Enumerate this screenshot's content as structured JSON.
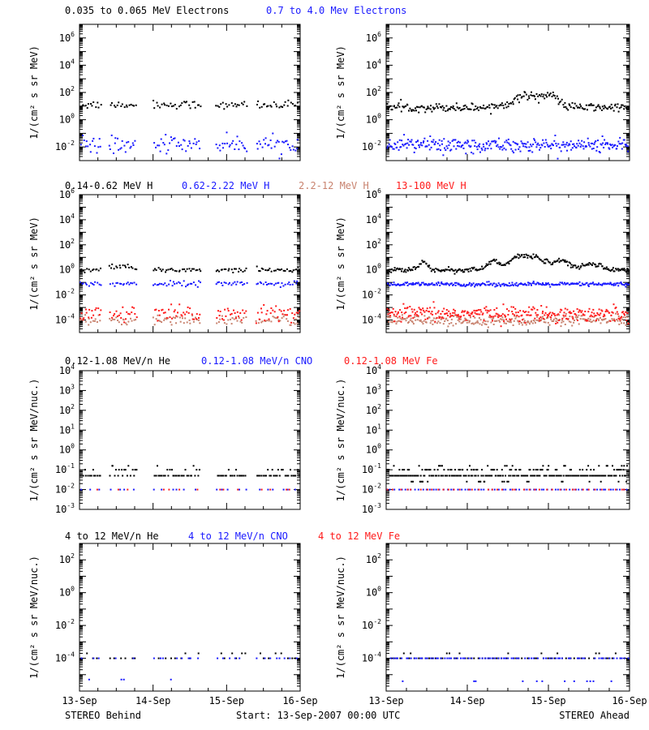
{
  "footer": {
    "left": "STEREO Behind",
    "center": "Start: 13-Sep-2007 00:00 UTC",
    "right": "STEREO Ahead"
  },
  "colors": {
    "black": "#000000",
    "blue": "#1a1aff",
    "salmon": "#c8826e",
    "red": "#ff1a1a"
  },
  "chart_data": [
    {
      "type": "scatter",
      "panel": "electrons-behind",
      "titles": [
        {
          "text": "0.035 to 0.065 MeV Electrons",
          "color": "#000000"
        },
        {
          "text": "0.7 to 4.0 Mev Electrons",
          "color": "#1a1aff"
        }
      ],
      "ylabel": "1/(cm² s sr MeV)",
      "ylog": true,
      "ylim_exp": [
        -3,
        7
      ],
      "ytick_exp": [
        -2,
        0,
        2,
        4,
        6
      ],
      "xlim_days": [
        0,
        3
      ],
      "xtick_labels": [],
      "data_gaps_days": [
        [
          0.3,
          0.4
        ],
        [
          0.78,
          1.0
        ],
        [
          1.65,
          1.85
        ],
        [
          2.28,
          2.4
        ]
      ],
      "series": [
        {
          "name": "0.035 to 0.065 MeV Electrons",
          "color": "#000000",
          "base_log": 1.1,
          "spread_log": 0.15,
          "density": 130
        },
        {
          "name": "0.7 to 4.0 Mev Electrons",
          "color": "#1a1aff",
          "base_log": -1.8,
          "spread_log": 0.3,
          "density": 160
        }
      ]
    },
    {
      "type": "scatter",
      "panel": "electrons-ahead",
      "titles": [],
      "ylabel": "1/(cm² s sr MeV)",
      "ylog": true,
      "ylim_exp": [
        -3,
        7
      ],
      "ytick_exp": [
        -2,
        0,
        2,
        4,
        6
      ],
      "xlim_days": [
        0,
        3
      ],
      "xtick_labels": [],
      "data_gaps_days": [],
      "series": [
        {
          "name": "0.035 to 0.065 MeV Electrons",
          "color": "#000000",
          "base_log": 0.9,
          "spread_log": 0.15,
          "density": 240,
          "bumps": [
            [
              1.78,
              0.9,
              0.2
            ],
            [
              2.05,
              0.5,
              0.08
            ]
          ]
        },
        {
          "name": "0.7 to 4.0 Mev Electrons",
          "color": "#1a1aff",
          "base_log": -1.85,
          "spread_log": 0.25,
          "density": 300
        }
      ]
    },
    {
      "type": "scatter",
      "panel": "protons-behind",
      "titles": [
        {
          "text": "0.14-0.62 MeV H",
          "color": "#000000"
        },
        {
          "text": "0.62-2.22 MeV H",
          "color": "#1a1aff"
        },
        {
          "text": "2.2-12 MeV H",
          "color": "#c8826e"
        },
        {
          "text": "13-100 MeV H",
          "color": "#ff1a1a"
        }
      ],
      "ylabel": "1/(cm² s sr MeV)",
      "ylog": true,
      "ylim_exp": [
        -5,
        6
      ],
      "ytick_exp": [
        -4,
        -2,
        0,
        2,
        4,
        6
      ],
      "xlim_days": [
        0,
        3
      ],
      "xtick_labels": [],
      "data_gaps_days": [
        [
          0.3,
          0.4
        ],
        [
          0.78,
          1.0
        ],
        [
          1.65,
          1.85
        ],
        [
          2.28,
          2.4
        ]
      ],
      "series": [
        {
          "name": "0.14-0.62 MeV H",
          "color": "#000000",
          "base_log": 0.0,
          "spread_log": 0.1,
          "density": 130,
          "bumps": [
            [
              0.5,
              0.3,
              0.15
            ]
          ]
        },
        {
          "name": "0.62-2.22 MeV H",
          "color": "#1a1aff",
          "base_log": -1.1,
          "spread_log": 0.1,
          "density": 130
        },
        {
          "name": "2.2-12 MeV H",
          "color": "#c8826e",
          "base_log": -4.0,
          "spread_log": 0.2,
          "density": 140
        },
        {
          "name": "13-100 MeV H",
          "color": "#ff1a1a",
          "base_log": -3.55,
          "spread_log": 0.35,
          "density": 160
        }
      ]
    },
    {
      "type": "scatter",
      "panel": "protons-ahead",
      "titles": [],
      "ylabel": "1/(cm² s sr MeV)",
      "ylog": true,
      "ylim_exp": [
        -5,
        6
      ],
      "ytick_exp": [
        -4,
        -2,
        0,
        2,
        4,
        6
      ],
      "xlim_days": [
        0,
        3
      ],
      "xtick_labels": [],
      "data_gaps_days": [],
      "series": [
        {
          "name": "0.14-0.62 MeV H",
          "color": "#000000",
          "base_log": 0.0,
          "spread_log": 0.1,
          "density": 260,
          "bumps": [
            [
              0.45,
              0.6,
              0.05
            ],
            [
              1.32,
              0.7,
              0.07
            ],
            [
              1.6,
              0.8,
              0.1
            ],
            [
              1.82,
              1.0,
              0.12
            ],
            [
              2.15,
              0.7,
              0.12
            ],
            [
              2.55,
              0.5,
              0.1
            ]
          ]
        },
        {
          "name": "0.62-2.22 MeV H",
          "color": "#1a1aff",
          "base_log": -1.15,
          "spread_log": 0.08,
          "density": 260
        },
        {
          "name": "2.2-12 MeV H",
          "color": "#c8826e",
          "base_log": -4.05,
          "spread_log": 0.2,
          "density": 260
        },
        {
          "name": "13-100 MeV H",
          "color": "#ff1a1a",
          "base_log": -3.5,
          "spread_log": 0.3,
          "density": 300
        }
      ]
    },
    {
      "type": "scatter",
      "panel": "ions-low-behind",
      "titles": [
        {
          "text": "0.12-1.08 MeV/n He",
          "color": "#000000"
        },
        {
          "text": "0.12-1.08 MeV/n CNO",
          "color": "#1a1aff"
        },
        {
          "text": "0.12-1.08 MeV Fe",
          "color": "#ff1a1a"
        }
      ],
      "ylabel": "1/(cm² s sr MeV/nuc.)",
      "ylog": true,
      "ylim_exp": [
        -3,
        4
      ],
      "ytick_exp": [
        -3,
        -2,
        -1,
        0,
        1,
        2,
        3,
        4
      ],
      "xlim_days": [
        0,
        3
      ],
      "xtick_labels": [],
      "data_gaps_days": [
        [
          0.3,
          0.4
        ],
        [
          0.78,
          1.0
        ],
        [
          1.65,
          1.85
        ],
        [
          2.28,
          2.4
        ]
      ],
      "series": [
        {
          "name": "0.12-1.08 MeV/n He",
          "color": "#000000",
          "quantized_log": [
            -1.3,
            -1.0,
            -0.8
          ],
          "weights": [
            0.75,
            0.2,
            0.05
          ],
          "density": 140
        },
        {
          "name": "0.12-1.08 MeV/n CNO",
          "color": "#1a1aff",
          "quantized_log": [
            -2.0
          ],
          "weights": [
            1
          ],
          "density": 30
        },
        {
          "name": "0.12-1.08 MeV Fe",
          "color": "#ff1a1a",
          "quantized_log": [
            -2.0
          ],
          "weights": [
            1
          ],
          "density": 20
        }
      ]
    },
    {
      "type": "scatter",
      "panel": "ions-low-ahead",
      "titles": [],
      "ylabel": "1/(cm² s sr MeV/nuc.)",
      "ylog": true,
      "ylim_exp": [
        -3,
        4
      ],
      "ytick_exp": [
        -3,
        -2,
        -1,
        0,
        1,
        2,
        3,
        4
      ],
      "xlim_days": [
        0,
        3
      ],
      "xtick_labels": [],
      "data_gaps_days": [],
      "series": [
        {
          "name": "0.12-1.08 MeV/n He",
          "color": "#000000",
          "quantized_log": [
            -1.3,
            -1.0,
            -0.8,
            -1.6
          ],
          "weights": [
            0.65,
            0.2,
            0.08,
            0.07
          ],
          "density": 300
        },
        {
          "name": "0.12-1.08 MeV/n CNO",
          "color": "#1a1aff",
          "quantized_log": [
            -2.0
          ],
          "weights": [
            1
          ],
          "density": 70
        },
        {
          "name": "0.12-1.08 MeV Fe",
          "color": "#ff1a1a",
          "quantized_log": [
            -2.0
          ],
          "weights": [
            1
          ],
          "density": 40
        }
      ]
    },
    {
      "type": "scatter",
      "panel": "ions-high-behind",
      "titles": [
        {
          "text": "4 to 12 MeV/n He",
          "color": "#000000"
        },
        {
          "text": "4 to 12 MeV/n CNO",
          "color": "#1a1aff"
        },
        {
          "text": "4 to 12 MeV Fe",
          "color": "#ff1a1a"
        }
      ],
      "ylabel": "1/(cm² s sr MeV/nuc.)",
      "ylog": true,
      "ylim_exp": [
        -6,
        3
      ],
      "ytick_exp": [
        -4,
        -2,
        0,
        2
      ],
      "xlim_days": [
        0,
        3
      ],
      "xtick_labels": [
        "13-Sep",
        "14-Sep",
        "15-Sep",
        "16-Sep"
      ],
      "data_gaps_days": [
        [
          0.3,
          0.4
        ],
        [
          0.78,
          1.0
        ],
        [
          1.65,
          1.85
        ],
        [
          2.28,
          2.4
        ]
      ],
      "series": [
        {
          "name": "4 to 12 MeV/n He",
          "color": "#000000",
          "quantized_log": [
            -4.0,
            -3.7
          ],
          "weights": [
            0.8,
            0.2
          ],
          "density": 40
        },
        {
          "name": "4 to 12 MeV/n CNO",
          "color": "#1a1aff",
          "quantized_log": [
            -4.0,
            -5.3
          ],
          "weights": [
            0.85,
            0.15
          ],
          "density": 40
        }
      ]
    },
    {
      "type": "scatter",
      "panel": "ions-high-ahead",
      "titles": [],
      "ylabel": "1/(cm² s sr MeV/nuc.)",
      "ylog": true,
      "ylim_exp": [
        -6,
        3
      ],
      "ytick_exp": [
        -4,
        -2,
        0,
        2
      ],
      "xlim_days": [
        0,
        3
      ],
      "xtick_labels": [
        "13-Sep",
        "14-Sep",
        "15-Sep",
        "16-Sep"
      ],
      "data_gaps_days": [],
      "series": [
        {
          "name": "4 to 12 MeV/n He",
          "color": "#000000",
          "quantized_log": [
            -4.0,
            -3.7
          ],
          "weights": [
            0.85,
            0.15
          ],
          "density": 70
        },
        {
          "name": "4 to 12 MeV/n CNO",
          "color": "#1a1aff",
          "quantized_log": [
            -4.0,
            -5.4
          ],
          "weights": [
            0.9,
            0.1
          ],
          "density": 90
        }
      ]
    }
  ]
}
